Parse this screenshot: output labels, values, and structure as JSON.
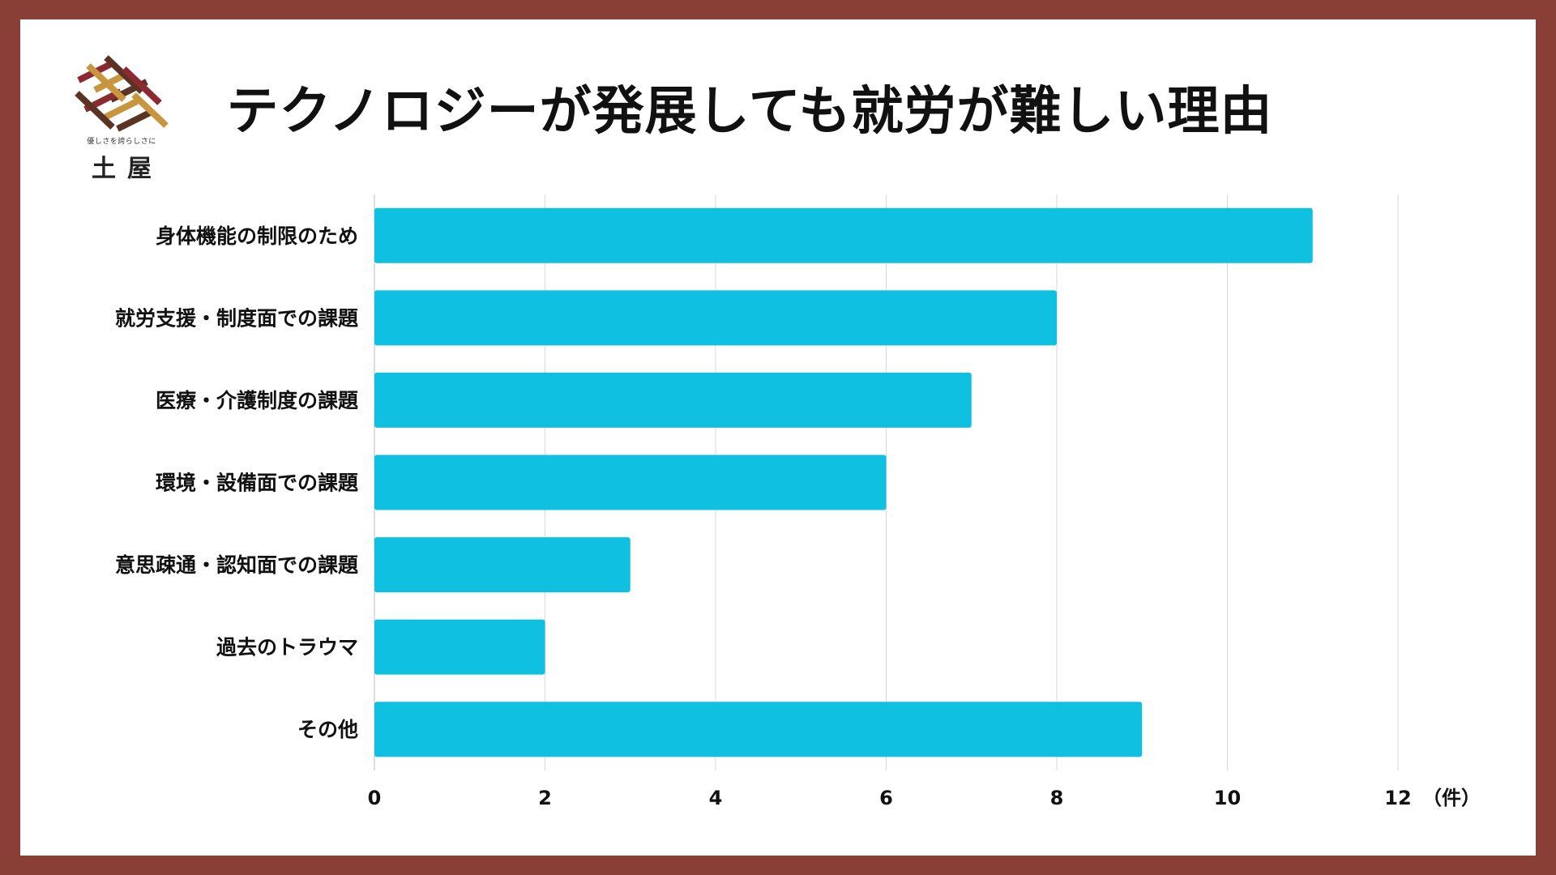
{
  "frame_color": "#8a3f36",
  "logo": {
    "tagline": "優しさを誇らしさに",
    "name": "土屋",
    "colors": [
      "#8b2a31",
      "#c8963e",
      "#5a3324"
    ]
  },
  "chart_data": {
    "type": "bar",
    "orientation": "horizontal",
    "title": "テクノロジーが発展しても就労が難しい理由",
    "categories": [
      "身体機能の制限のため",
      "就労支援・制度面での課題",
      "医療・介護制度の課題",
      "環境・設備面での課題",
      "意思疎通・認知面での課題",
      "過去のトラウマ",
      "その他"
    ],
    "values": [
      11,
      8,
      7,
      6,
      3,
      2,
      9
    ],
    "xlim": [
      0,
      12
    ],
    "xticks": [
      "0",
      "2",
      "4",
      "6",
      "8",
      "10",
      "12"
    ],
    "unit_label": "（件）",
    "grid": true,
    "bar_color": "#10c0e0",
    "grid_color": "#d9d9d9"
  }
}
